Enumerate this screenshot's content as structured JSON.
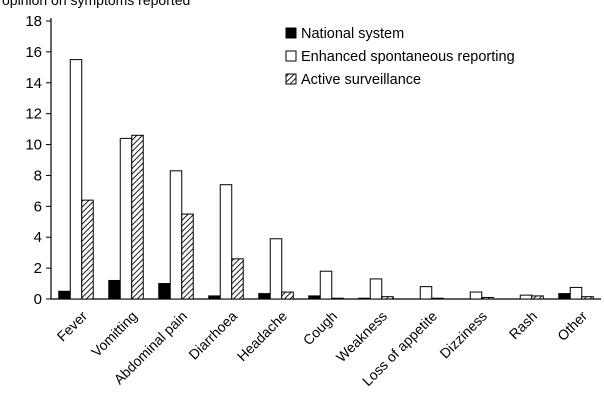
{
  "chart_data": {
    "type": "bar",
    "title_fragment": "opinion on symptoms reported",
    "categories": [
      "Fever",
      "Vomitting",
      "Abdominal pain",
      "Diarrhoea",
      "Headache",
      "Cough",
      "Weakness",
      "Loss of appetite",
      "Dizziness",
      "Rash",
      "Other"
    ],
    "series": [
      {
        "name": "National system",
        "style": "solid",
        "color": "#000000",
        "values": [
          0.5,
          1.2,
          1.0,
          0.2,
          0.35,
          0.2,
          0.05,
          0.0,
          0.0,
          0.0,
          0.35
        ]
      },
      {
        "name": "Enhanced spontaneous reporting",
        "style": "open",
        "color": "#ffffff",
        "values": [
          15.5,
          10.4,
          8.3,
          7.4,
          3.9,
          1.8,
          1.3,
          0.8,
          0.45,
          0.25,
          0.75
        ]
      },
      {
        "name": "Active surveillance",
        "style": "hatched",
        "color": "#000000",
        "values": [
          6.4,
          10.6,
          5.5,
          2.6,
          0.45,
          0.05,
          0.15,
          0.05,
          0.1,
          0.2,
          0.15
        ]
      }
    ],
    "y_ticks": [
      "0",
      "2",
      "4",
      "6",
      "8",
      "10",
      "12",
      "14",
      "16",
      "18"
    ],
    "ylim": [
      0,
      18
    ],
    "grid": false,
    "legend_position": "top-right",
    "xlabel": "",
    "ylabel": ""
  }
}
